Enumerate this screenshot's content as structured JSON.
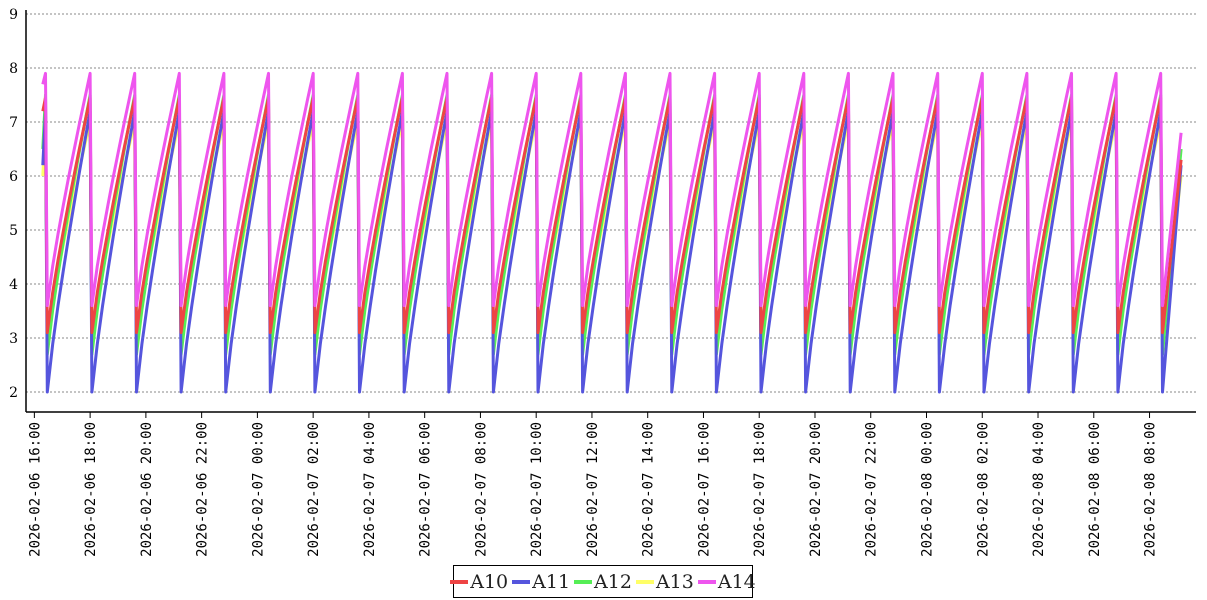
{
  "chart_data": {
    "type": "line",
    "title": "",
    "xlabel": "",
    "ylabel": "",
    "ylim": [
      2,
      9
    ],
    "yticks": [
      2,
      3,
      4,
      5,
      6,
      7,
      8,
      9
    ],
    "grid": true,
    "legend_position": "bottom-center",
    "x_ticks": [
      "2026-02-06 16:00",
      "2026-02-06 18:00",
      "2026-02-06 20:00",
      "2026-02-06 22:00",
      "2026-02-07 00:00",
      "2026-02-07 02:00",
      "2026-02-07 04:00",
      "2026-02-07 06:00",
      "2026-02-07 08:00",
      "2026-02-07 10:00",
      "2026-02-07 12:00",
      "2026-02-07 14:00",
      "2026-02-07 16:00",
      "2026-02-07 18:00",
      "2026-02-07 20:00",
      "2026-02-07 22:00",
      "2026-02-08 00:00",
      "2026-02-08 02:00",
      "2026-02-08 04:00",
      "2026-02-08 06:00",
      "2026-02-08 08:00"
    ],
    "x_range": [
      "2026-02-06 15:42",
      "2026-02-08 09:40"
    ],
    "sawtooth": {
      "cycle_minutes": 96,
      "first_peak_time": "2026-02-06 16:24",
      "last_time": "2026-02-08 09:08"
    },
    "series": [
      {
        "name": "A10",
        "color": "#ee4444",
        "start": 7.2,
        "peak": 7.45,
        "trough": 3.1,
        "end": 6.3
      },
      {
        "name": "A11",
        "color": "#5555dd",
        "start": 6.2,
        "peak": 7.2,
        "trough": 2.0,
        "end": 6.2
      },
      {
        "name": "A12",
        "color": "#55ee55",
        "start": 6.5,
        "peak": 7.5,
        "trough": 2.7,
        "end": 6.5
      },
      {
        "name": "A13",
        "color": "#ffff66",
        "start": 6.0,
        "peak": 7.0,
        "trough": 3.0,
        "end": 6.0
      },
      {
        "name": "A14",
        "color": "#ee55ee",
        "start": 7.7,
        "peak": 7.9,
        "trough": 3.6,
        "end": 6.8
      }
    ]
  }
}
